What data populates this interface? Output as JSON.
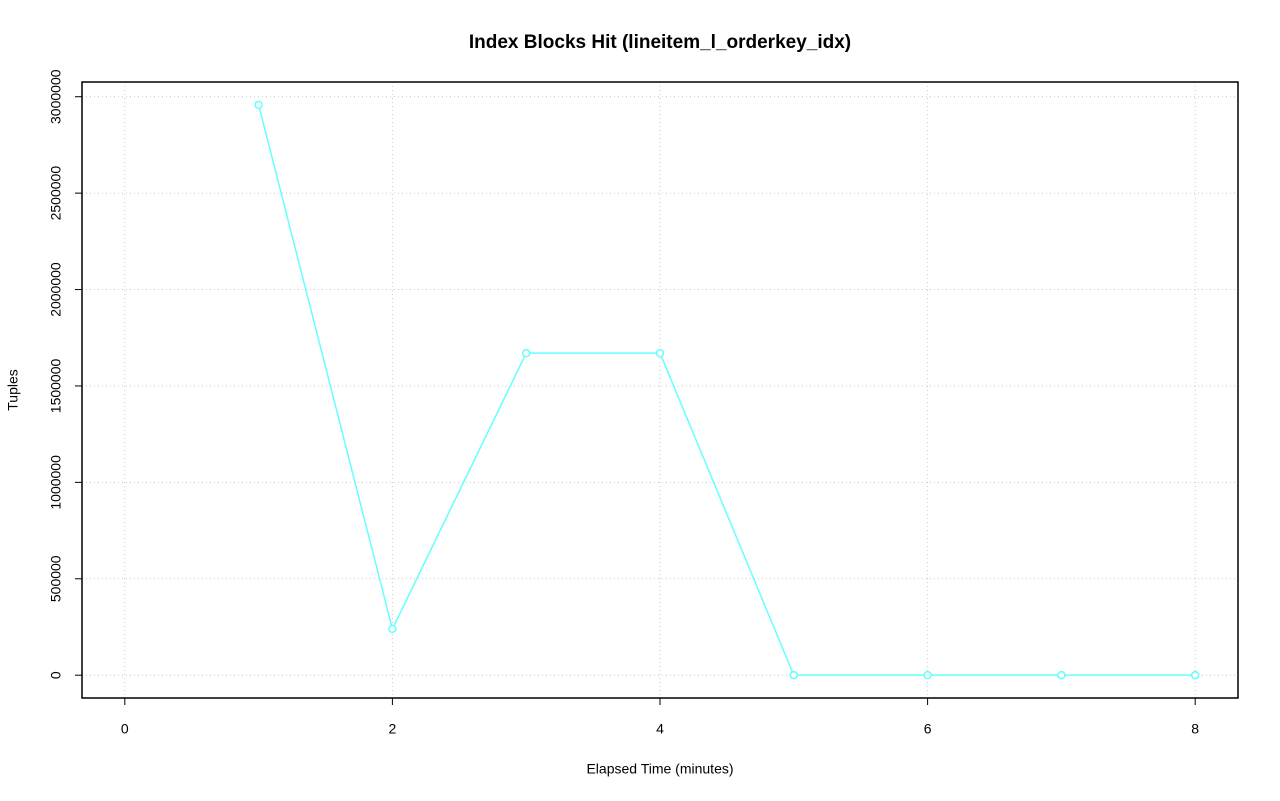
{
  "chart_data": {
    "type": "line",
    "title": "Index Blocks Hit (lineitem_l_orderkey_idx)",
    "x_label": "Elapsed Time (minutes)",
    "y_label": "Tuples",
    "x": [
      1,
      2,
      3,
      4,
      5,
      6,
      7,
      8
    ],
    "series": [
      {
        "color": "#66ffff",
        "values": [
          2958000,
          240000,
          1670000,
          1670000,
          0,
          0,
          0,
          0
        ]
      }
    ],
    "xlim": [
      -0.32,
      8.32
    ],
    "xticks": [
      0,
      2,
      4,
      6,
      8
    ],
    "ylim": [
      -118320,
      3076320
    ],
    "yticks": [
      0,
      500000,
      1000000,
      1500000,
      2000000,
      2500000,
      3000000
    ],
    "grid": true
  }
}
